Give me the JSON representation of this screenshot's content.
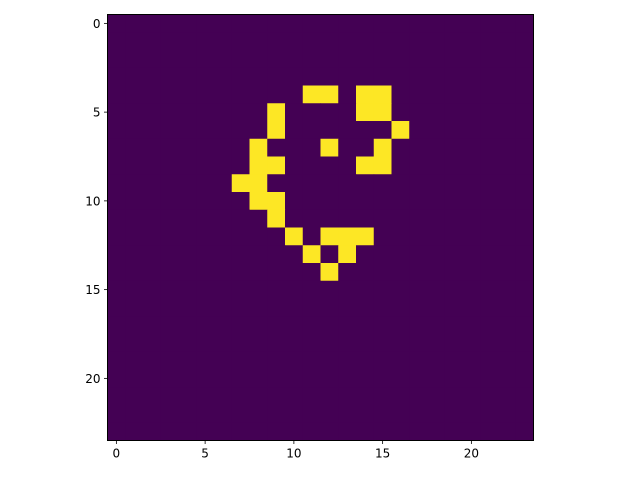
{
  "chart_data": {
    "type": "heatmap",
    "title": "",
    "xlabel": "",
    "ylabel": "",
    "grid": false,
    "legend": "none",
    "colormap": "viridis",
    "xlim": [
      -0.5,
      23.5
    ],
    "ylim": [
      23.5,
      -0.5
    ],
    "x_ticks": [
      0,
      5,
      10,
      15,
      20
    ],
    "y_ticks": [
      0,
      5,
      10,
      15,
      20
    ],
    "x_tick_labels": [
      "0",
      "5",
      "10",
      "15",
      "20"
    ],
    "y_tick_labels": [
      "0",
      "5",
      "10",
      "15",
      "20"
    ],
    "value_range": [
      0,
      1
    ],
    "colors": {
      "low": "#440154",
      "high": "#fde725"
    },
    "grid_size": [
      24,
      24
    ],
    "values": [
      [
        0,
        0,
        0,
        0,
        0,
        0,
        0,
        0,
        0,
        0,
        0,
        0,
        0,
        0,
        0,
        0,
        0,
        0,
        0,
        0,
        0,
        0,
        0,
        0
      ],
      [
        0,
        0,
        0,
        0,
        0,
        0,
        0,
        0,
        0,
        0,
        0,
        0,
        0,
        0,
        0,
        0,
        0,
        0,
        0,
        0,
        0,
        0,
        0,
        0
      ],
      [
        0,
        0,
        0,
        0,
        0,
        0,
        0,
        0,
        0,
        0,
        0,
        0,
        0,
        0,
        0,
        0,
        0,
        0,
        0,
        0,
        0,
        0,
        0,
        0
      ],
      [
        0,
        0,
        0,
        0,
        0,
        0,
        0,
        0,
        0,
        0,
        0,
        0,
        0,
        0,
        0,
        0,
        0,
        0,
        0,
        0,
        0,
        0,
        0,
        0
      ],
      [
        0,
        0,
        0,
        0,
        0,
        0,
        0,
        0,
        0,
        0,
        0,
        1,
        1,
        0,
        1,
        1,
        0,
        0,
        0,
        0,
        0,
        0,
        0,
        0
      ],
      [
        0,
        0,
        0,
        0,
        0,
        0,
        0,
        0,
        0,
        1,
        0,
        0,
        0,
        0,
        1,
        1,
        0,
        0,
        0,
        0,
        0,
        0,
        0,
        0
      ],
      [
        0,
        0,
        0,
        0,
        0,
        0,
        0,
        0,
        0,
        1,
        0,
        0,
        0,
        0,
        0,
        0,
        1,
        0,
        0,
        0,
        0,
        0,
        0,
        0
      ],
      [
        0,
        0,
        0,
        0,
        0,
        0,
        0,
        0,
        1,
        0,
        0,
        0,
        1,
        0,
        0,
        1,
        0,
        0,
        0,
        0,
        0,
        0,
        0,
        0
      ],
      [
        0,
        0,
        0,
        0,
        0,
        0,
        0,
        0,
        1,
        1,
        0,
        0,
        0,
        0,
        1,
        1,
        0,
        0,
        0,
        0,
        0,
        0,
        0,
        0
      ],
      [
        0,
        0,
        0,
        0,
        0,
        0,
        0,
        1,
        1,
        0,
        0,
        0,
        0,
        0,
        0,
        0,
        0,
        0,
        0,
        0,
        0,
        0,
        0,
        0
      ],
      [
        0,
        0,
        0,
        0,
        0,
        0,
        0,
        0,
        1,
        1,
        0,
        0,
        0,
        0,
        0,
        0,
        0,
        0,
        0,
        0,
        0,
        0,
        0,
        0
      ],
      [
        0,
        0,
        0,
        0,
        0,
        0,
        0,
        0,
        0,
        1,
        0,
        0,
        0,
        0,
        0,
        0,
        0,
        0,
        0,
        0,
        0,
        0,
        0,
        0
      ],
      [
        0,
        0,
        0,
        0,
        0,
        0,
        0,
        0,
        0,
        0,
        1,
        0,
        1,
        1,
        1,
        0,
        0,
        0,
        0,
        0,
        0,
        0,
        0,
        0
      ],
      [
        0,
        0,
        0,
        0,
        0,
        0,
        0,
        0,
        0,
        0,
        0,
        1,
        0,
        1,
        0,
        0,
        0,
        0,
        0,
        0,
        0,
        0,
        0,
        0
      ],
      [
        0,
        0,
        0,
        0,
        0,
        0,
        0,
        0,
        0,
        0,
        0,
        0,
        1,
        0,
        0,
        0,
        0,
        0,
        0,
        0,
        0,
        0,
        0,
        0
      ],
      [
        0,
        0,
        0,
        0,
        0,
        0,
        0,
        0,
        0,
        0,
        0,
        0,
        0,
        0,
        0,
        0,
        0,
        0,
        0,
        0,
        0,
        0,
        0,
        0
      ],
      [
        0,
        0,
        0,
        0,
        0,
        0,
        0,
        0,
        0,
        0,
        0,
        0,
        0,
        0,
        0,
        0,
        0,
        0,
        0,
        0,
        0,
        0,
        0,
        0
      ],
      [
        0,
        0,
        0,
        0,
        0,
        0,
        0,
        0,
        0,
        0,
        0,
        0,
        0,
        0,
        0,
        0,
        0,
        0,
        0,
        0,
        0,
        0,
        0,
        0
      ],
      [
        0,
        0,
        0,
        0,
        0,
        0,
        0,
        0,
        0,
        0,
        0,
        0,
        0,
        0,
        0,
        0,
        0,
        0,
        0,
        0,
        0,
        0,
        0,
        0
      ],
      [
        0,
        0,
        0,
        0,
        0,
        0,
        0,
        0,
        0,
        0,
        0,
        0,
        0,
        0,
        0,
        0,
        0,
        0,
        0,
        0,
        0,
        0,
        0,
        0
      ],
      [
        0,
        0,
        0,
        0,
        0,
        0,
        0,
        0,
        0,
        0,
        0,
        0,
        0,
        0,
        0,
        0,
        0,
        0,
        0,
        0,
        0,
        0,
        0,
        0
      ],
      [
        0,
        0,
        0,
        0,
        0,
        0,
        0,
        0,
        0,
        0,
        0,
        0,
        0,
        0,
        0,
        0,
        0,
        0,
        0,
        0,
        0,
        0,
        0,
        0
      ],
      [
        0,
        0,
        0,
        0,
        0,
        0,
        0,
        0,
        0,
        0,
        0,
        0,
        0,
        0,
        0,
        0,
        0,
        0,
        0,
        0,
        0,
        0,
        0,
        0
      ],
      [
        0,
        0,
        0,
        0,
        0,
        0,
        0,
        0,
        0,
        0,
        0,
        0,
        0,
        0,
        0,
        0,
        0,
        0,
        0,
        0,
        0,
        0,
        0,
        0
      ]
    ]
  }
}
